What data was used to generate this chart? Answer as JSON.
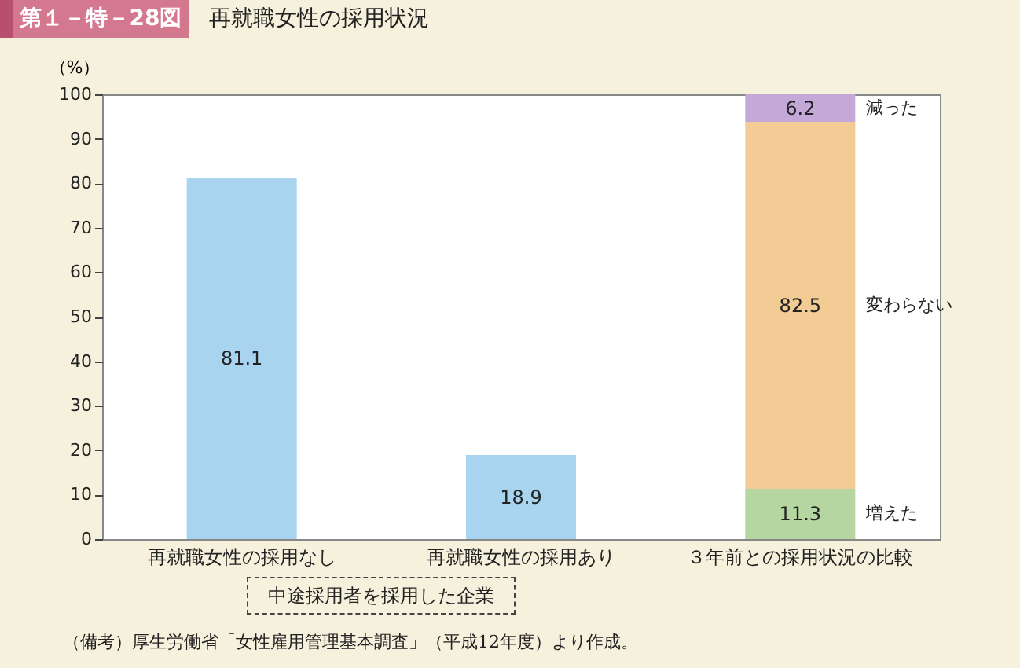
{
  "chart_data": {
    "type": "bar",
    "title": "再就職女性の採用状況",
    "subtitle": "第１－特－28図",
    "ylabel": "（%）",
    "categories": [
      "再就職女性の採用なし",
      "再就職女性の採用あり",
      "３年前との採用状況の比較"
    ],
    "stacked": true,
    "series": [
      {
        "color": "#a8d4f0",
        "values": [
          81.1,
          18.9,
          null
        ]
      },
      {
        "name": "増えた",
        "color": "#b5d6a0",
        "values": [
          null,
          null,
          11.3
        ]
      },
      {
        "name": "変わらない",
        "color": "#f2cc94",
        "values": [
          null,
          null,
          82.5
        ]
      },
      {
        "name": "減った",
        "color": "#c3a8d8",
        "values": [
          null,
          null,
          6.2
        ]
      }
    ],
    "ylim": [
      0,
      100
    ],
    "yticks": [
      0,
      10,
      20,
      30,
      40,
      50,
      60,
      70,
      80,
      90,
      100
    ],
    "data_labels": true,
    "annotations": [
      "中途採用者を採用した企業",
      "（備考）厚生労働省「女性雇用管理基本調査」（平成12年度）より作成。"
    ]
  }
}
